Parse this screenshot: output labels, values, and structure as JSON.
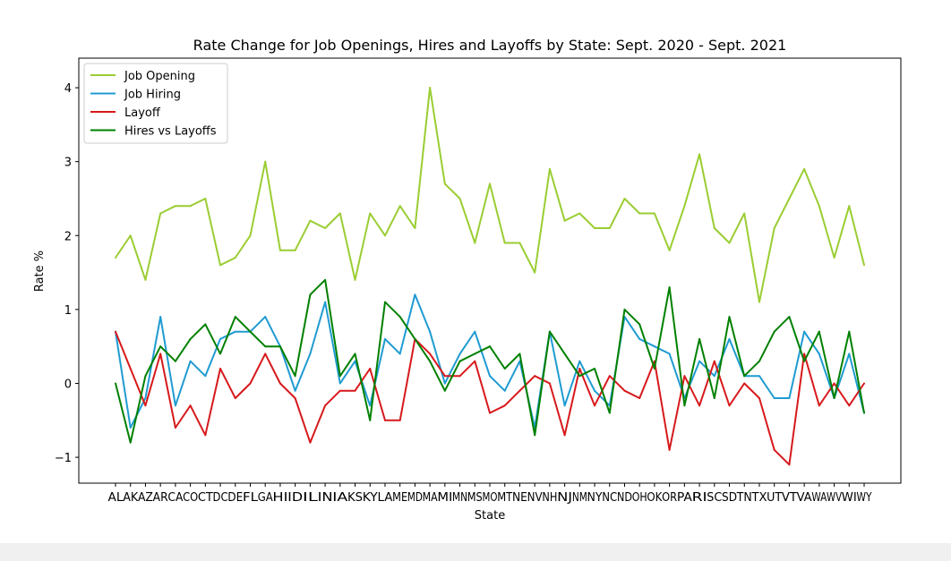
{
  "chart_data": {
    "type": "line",
    "title": "Rate Change for Job Openings, Hires and Layoffs by State: Sept. 2020 - Sept. 2021",
    "xlabel": "State",
    "ylabel": "Rate %",
    "ylim": [
      -1.35,
      4.4
    ],
    "yticks": [
      -1,
      0,
      1,
      2,
      3,
      4
    ],
    "ytick_labels": [
      "−1",
      "0",
      "1",
      "2",
      "3",
      "4"
    ],
    "grid": false,
    "legend_position": "upper-left",
    "categories": [
      "AL",
      "AK",
      "AZ",
      "AR",
      "CA",
      "CO",
      "CT",
      "DC",
      "DE",
      "FL",
      "GA",
      "HI",
      "ID",
      "IL",
      "IN",
      "IA",
      "KS",
      "KY",
      "LA",
      "ME",
      "MD",
      "MA",
      "MI",
      "MN",
      "MS",
      "MO",
      "MT",
      "NE",
      "NV",
      "NH",
      "NJ",
      "NM",
      "NY",
      "NC",
      "ND",
      "OH",
      "OK",
      "OR",
      "PA",
      "RI",
      "SC",
      "SD",
      "TN",
      "TX",
      "UT",
      "VT",
      "VA",
      "WA",
      "WV",
      "WI",
      "WY"
    ],
    "series": [
      {
        "name": "Job Opening",
        "color": "#9acd32",
        "values": [
          1.7,
          2.0,
          1.4,
          2.3,
          2.4,
          2.4,
          2.5,
          1.6,
          1.7,
          2.0,
          3.0,
          1.8,
          1.8,
          2.2,
          2.1,
          2.3,
          1.4,
          2.3,
          2.0,
          2.4,
          2.1,
          4.0,
          2.7,
          2.5,
          1.9,
          2.7,
          1.9,
          1.9,
          1.5,
          2.9,
          2.2,
          2.3,
          2.1,
          2.1,
          2.5,
          2.3,
          2.3,
          1.8,
          2.4,
          3.1,
          2.1,
          1.9,
          2.3,
          1.1,
          2.1,
          2.5,
          2.9,
          2.4,
          1.7,
          2.4,
          1.6
        ]
      },
      {
        "name": "Job Hiring",
        "color": "#1f9bd1",
        "values": [
          0.7,
          -0.6,
          -0.2,
          0.9,
          -0.3,
          0.3,
          0.1,
          0.6,
          0.7,
          0.7,
          0.9,
          0.5,
          -0.1,
          0.4,
          1.1,
          0.0,
          0.3,
          -0.3,
          0.6,
          0.4,
          1.2,
          0.7,
          0.0,
          0.4,
          0.7,
          0.1,
          -0.1,
          0.3,
          -0.6,
          0.7,
          -0.3,
          0.3,
          -0.1,
          -0.3,
          0.9,
          0.6,
          0.5,
          0.4,
          -0.2,
          0.3,
          0.1,
          0.6,
          0.1,
          0.1,
          -0.2,
          -0.2,
          0.7,
          0.4,
          -0.2,
          0.4,
          -0.4
        ]
      },
      {
        "name": "Layoff",
        "color": "#d7191c",
        "values": [
          0.7,
          0.2,
          -0.3,
          0.4,
          -0.6,
          -0.3,
          -0.7,
          0.2,
          -0.2,
          0.0,
          0.4,
          0.0,
          -0.2,
          -0.8,
          -0.3,
          -0.1,
          -0.1,
          0.2,
          -0.5,
          -0.5,
          0.6,
          0.4,
          0.1,
          0.1,
          0.3,
          -0.4,
          -0.3,
          -0.1,
          0.1,
          0.0,
          -0.7,
          0.2,
          -0.3,
          0.1,
          -0.1,
          -0.2,
          0.3,
          -0.9,
          0.1,
          -0.3,
          0.3,
          -0.3,
          0.0,
          -0.2,
          -0.9,
          -1.1,
          0.4,
          -0.3,
          0.0,
          -0.3,
          0.0
        ]
      },
      {
        "name": "Hires vs Layoffs",
        "color": "#008000",
        "values": [
          0.0,
          -0.8,
          0.1,
          0.5,
          0.3,
          0.6,
          0.8,
          0.4,
          0.9,
          0.7,
          0.5,
          0.5,
          0.1,
          1.2,
          1.4,
          0.1,
          0.4,
          -0.5,
          1.1,
          0.9,
          0.6,
          0.3,
          -0.1,
          0.3,
          0.4,
          0.5,
          0.2,
          0.4,
          -0.7,
          0.7,
          0.4,
          0.1,
          0.2,
          -0.4,
          1.0,
          0.8,
          0.2,
          1.3,
          -0.3,
          0.6,
          -0.2,
          0.9,
          0.1,
          0.3,
          0.7,
          0.9,
          0.3,
          0.7,
          -0.2,
          0.7,
          -0.4
        ]
      }
    ]
  }
}
